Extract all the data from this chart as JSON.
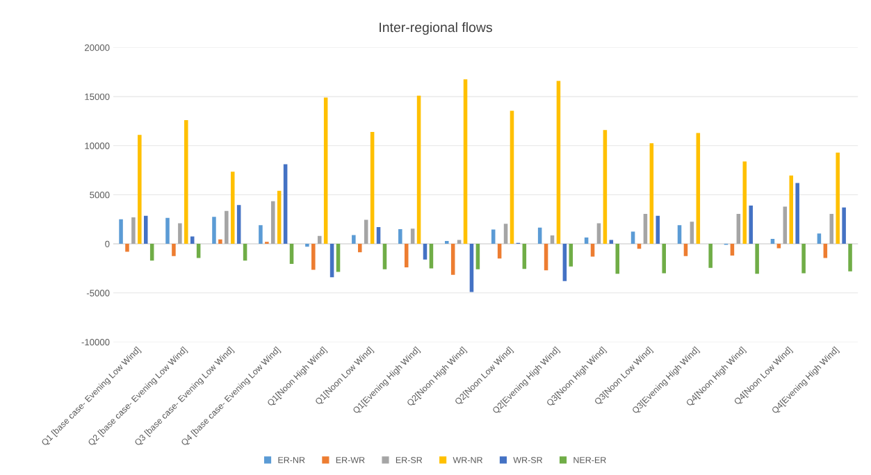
{
  "chart_data": {
    "type": "bar",
    "title": "Inter-regional flows",
    "categories": [
      "Q1 [base case- Evening Low Wind]",
      "Q2 [base case- Evening Low Wind]",
      "Q3 [base case- Evening Low Wind]",
      "Q4 [base case- Evening Low Wind]",
      "Q1[Noon High Wind]",
      "Q1[Noon Low Wind]",
      "Q1[Evening High Wind]",
      "Q2[Noon High Wind]",
      "Q2[Noon Low Wind]",
      "Q2[Evening High Wind]",
      "Q3[Noon High Wind]",
      "Q3[Noon Low Wind]",
      "Q3[Evening High Wind]",
      "Q4[Noon High Wind]",
      "Q4[Noon Low Wind]",
      "Q4[Evening High Wind]"
    ],
    "series": [
      {
        "name": "ER-NR",
        "color": "#5b9bd5",
        "values": [
          2500,
          2650,
          2750,
          1900,
          -300,
          900,
          1500,
          300,
          1450,
          1650,
          650,
          1250,
          1900,
          -100,
          500,
          1050
        ]
      },
      {
        "name": "ER-WR",
        "color": "#ed7d31",
        "values": [
          -800,
          -1250,
          450,
          200,
          -2650,
          -850,
          -2400,
          -3150,
          -1500,
          -2700,
          -1300,
          -500,
          -1250,
          -1200,
          -450,
          -1450
        ]
      },
      {
        "name": "ER-SR",
        "color": "#a5a5a5",
        "values": [
          2700,
          2100,
          3350,
          4350,
          800,
          2450,
          1550,
          400,
          2050,
          850,
          2100,
          3050,
          2250,
          3050,
          3800,
          3050
        ]
      },
      {
        "name": "WR-NR",
        "color": "#ffc000",
        "values": [
          11100,
          12600,
          7350,
          5400,
          14900,
          11400,
          15100,
          16750,
          13550,
          16600,
          11600,
          10250,
          11300,
          8400,
          6950,
          9300
        ]
      },
      {
        "name": "WR-SR",
        "color": "#4472c4",
        "values": [
          2850,
          750,
          3950,
          8100,
          -3400,
          1700,
          -1600,
          -4900,
          100,
          -3800,
          400,
          2850,
          0,
          3900,
          6200,
          3700
        ]
      },
      {
        "name": "NER-ER",
        "color": "#70ad47",
        "values": [
          -1700,
          -1450,
          -1700,
          -2050,
          -2850,
          -2600,
          -2500,
          -2600,
          -2550,
          -2300,
          -3050,
          -3000,
          -2450,
          -3050,
          -3000,
          -2800
        ]
      }
    ],
    "ylim": [
      -10000,
      20000
    ],
    "yticks": [
      -10000,
      -5000,
      0,
      5000,
      10000,
      15000,
      20000
    ],
    "grid": "y",
    "legend": "bottom"
  }
}
